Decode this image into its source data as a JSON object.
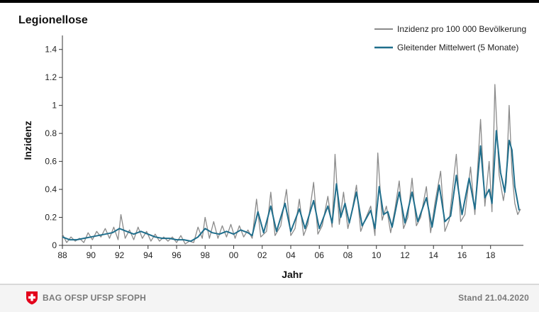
{
  "chart_data": {
    "type": "line",
    "title": "Legionellose",
    "xlabel": "Jahr",
    "ylabel": "Inzidenz",
    "ylim": [
      0,
      1.5
    ],
    "yticks": [
      0,
      0.2,
      0.4,
      0.6,
      0.8,
      1,
      1.2,
      1.4
    ],
    "ytick_labels": [
      "0",
      "0.2",
      "0.4",
      "0.6",
      "0.8",
      "1",
      "1.2",
      "1.4"
    ],
    "xlim": [
      1988,
      2020.3
    ],
    "xticks": [
      1988,
      1990,
      1992,
      1994,
      1996,
      1998,
      2000,
      2002,
      2004,
      2006,
      2008,
      2010,
      2012,
      2014,
      2016,
      2018
    ],
    "xtick_labels": [
      "88",
      "90",
      "92",
      "94",
      "96",
      "98",
      "00",
      "02",
      "04",
      "06",
      "08",
      "10",
      "12",
      "14",
      "16",
      "18"
    ],
    "legend_position": "top-right",
    "series": [
      {
        "name": "Inzidenz pro 100 000 Bevölkerung",
        "color": "#8a8a8a",
        "points": [
          [
            1988.0,
            0.08
          ],
          [
            1988.3,
            0.02
          ],
          [
            1988.6,
            0.06
          ],
          [
            1988.9,
            0.03
          ],
          [
            1989.2,
            0.05
          ],
          [
            1989.5,
            0.02
          ],
          [
            1989.8,
            0.09
          ],
          [
            1990.1,
            0.04
          ],
          [
            1990.4,
            0.1
          ],
          [
            1990.7,
            0.06
          ],
          [
            1991.0,
            0.12
          ],
          [
            1991.3,
            0.05
          ],
          [
            1991.6,
            0.13
          ],
          [
            1991.9,
            0.04
          ],
          [
            1992.1,
            0.22
          ],
          [
            1992.4,
            0.05
          ],
          [
            1992.7,
            0.11
          ],
          [
            1993.0,
            0.04
          ],
          [
            1993.3,
            0.13
          ],
          [
            1993.6,
            0.05
          ],
          [
            1993.9,
            0.1
          ],
          [
            1994.2,
            0.03
          ],
          [
            1994.5,
            0.08
          ],
          [
            1994.8,
            0.03
          ],
          [
            1995.1,
            0.06
          ],
          [
            1995.4,
            0.03
          ],
          [
            1995.7,
            0.06
          ],
          [
            1996.0,
            0.02
          ],
          [
            1996.3,
            0.07
          ],
          [
            1996.6,
            0.01
          ],
          [
            1996.9,
            0.03
          ],
          [
            1997.2,
            0.02
          ],
          [
            1997.5,
            0.13
          ],
          [
            1997.8,
            0.05
          ],
          [
            1998.0,
            0.2
          ],
          [
            1998.3,
            0.05
          ],
          [
            1998.6,
            0.17
          ],
          [
            1998.9,
            0.05
          ],
          [
            1999.2,
            0.14
          ],
          [
            1999.5,
            0.06
          ],
          [
            1999.8,
            0.15
          ],
          [
            2000.1,
            0.05
          ],
          [
            2000.4,
            0.14
          ],
          [
            2000.7,
            0.06
          ],
          [
            2001.0,
            0.11
          ],
          [
            2001.3,
            0.05
          ],
          [
            2001.6,
            0.33
          ],
          [
            2001.9,
            0.06
          ],
          [
            2002.3,
            0.1
          ],
          [
            2002.6,
            0.38
          ],
          [
            2002.9,
            0.07
          ],
          [
            2003.3,
            0.14
          ],
          [
            2003.7,
            0.4
          ],
          [
            2004.0,
            0.07
          ],
          [
            2004.3,
            0.12
          ],
          [
            2004.6,
            0.33
          ],
          [
            2004.9,
            0.07
          ],
          [
            2005.2,
            0.15
          ],
          [
            2005.6,
            0.45
          ],
          [
            2005.9,
            0.08
          ],
          [
            2006.2,
            0.14
          ],
          [
            2006.6,
            0.35
          ],
          [
            2006.9,
            0.13
          ],
          [
            2007.1,
            0.65
          ],
          [
            2007.4,
            0.15
          ],
          [
            2007.7,
            0.38
          ],
          [
            2008.0,
            0.12
          ],
          [
            2008.3,
            0.25
          ],
          [
            2008.6,
            0.43
          ],
          [
            2008.9,
            0.1
          ],
          [
            2009.2,
            0.18
          ],
          [
            2009.6,
            0.28
          ],
          [
            2009.9,
            0.07
          ],
          [
            2010.1,
            0.66
          ],
          [
            2010.4,
            0.18
          ],
          [
            2010.7,
            0.28
          ],
          [
            2011.0,
            0.09
          ],
          [
            2011.3,
            0.26
          ],
          [
            2011.6,
            0.46
          ],
          [
            2011.9,
            0.12
          ],
          [
            2012.2,
            0.2
          ],
          [
            2012.5,
            0.48
          ],
          [
            2012.8,
            0.14
          ],
          [
            2013.1,
            0.2
          ],
          [
            2013.5,
            0.42
          ],
          [
            2013.8,
            0.09
          ],
          [
            2014.1,
            0.3
          ],
          [
            2014.5,
            0.53
          ],
          [
            2014.8,
            0.1
          ],
          [
            2015.1,
            0.18
          ],
          [
            2015.6,
            0.65
          ],
          [
            2015.9,
            0.17
          ],
          [
            2016.2,
            0.22
          ],
          [
            2016.6,
            0.56
          ],
          [
            2016.9,
            0.22
          ],
          [
            2017.3,
            0.9
          ],
          [
            2017.6,
            0.28
          ],
          [
            2017.9,
            0.6
          ],
          [
            2018.1,
            0.24
          ],
          [
            2018.3,
            1.15
          ],
          [
            2018.6,
            0.5
          ],
          [
            2018.9,
            0.32
          ],
          [
            2019.1,
            0.45
          ],
          [
            2019.3,
            1.0
          ],
          [
            2019.5,
            0.52
          ],
          [
            2019.7,
            0.3
          ],
          [
            2019.9,
            0.22
          ],
          [
            2020.1,
            0.26
          ]
        ]
      },
      {
        "name": "Gleitender Mittelwert (5 Monate)",
        "color": "#1f6e8c",
        "points": [
          [
            1988.0,
            0.06
          ],
          [
            1988.5,
            0.04
          ],
          [
            1989.0,
            0.04
          ],
          [
            1989.5,
            0.05
          ],
          [
            1990.0,
            0.06
          ],
          [
            1990.5,
            0.07
          ],
          [
            1991.0,
            0.08
          ],
          [
            1991.5,
            0.09
          ],
          [
            1992.0,
            0.12
          ],
          [
            1992.5,
            0.1
          ],
          [
            1993.0,
            0.08
          ],
          [
            1993.5,
            0.1
          ],
          [
            1994.0,
            0.08
          ],
          [
            1994.5,
            0.06
          ],
          [
            1995.0,
            0.05
          ],
          [
            1995.5,
            0.05
          ],
          [
            1996.0,
            0.04
          ],
          [
            1996.5,
            0.04
          ],
          [
            1997.0,
            0.03
          ],
          [
            1997.5,
            0.06
          ],
          [
            1998.0,
            0.12
          ],
          [
            1998.5,
            0.09
          ],
          [
            1999.0,
            0.08
          ],
          [
            1999.5,
            0.1
          ],
          [
            2000.0,
            0.08
          ],
          [
            2000.5,
            0.11
          ],
          [
            2001.0,
            0.09
          ],
          [
            2001.3,
            0.07
          ],
          [
            2001.7,
            0.24
          ],
          [
            2002.1,
            0.09
          ],
          [
            2002.6,
            0.28
          ],
          [
            2003.0,
            0.1
          ],
          [
            2003.6,
            0.3
          ],
          [
            2004.0,
            0.1
          ],
          [
            2004.6,
            0.26
          ],
          [
            2005.0,
            0.12
          ],
          [
            2005.6,
            0.32
          ],
          [
            2006.0,
            0.12
          ],
          [
            2006.6,
            0.28
          ],
          [
            2006.9,
            0.16
          ],
          [
            2007.2,
            0.44
          ],
          [
            2007.5,
            0.2
          ],
          [
            2007.8,
            0.3
          ],
          [
            2008.1,
            0.16
          ],
          [
            2008.6,
            0.38
          ],
          [
            2009.0,
            0.14
          ],
          [
            2009.6,
            0.25
          ],
          [
            2009.9,
            0.12
          ],
          [
            2010.2,
            0.42
          ],
          [
            2010.5,
            0.22
          ],
          [
            2010.8,
            0.24
          ],
          [
            2011.1,
            0.13
          ],
          [
            2011.6,
            0.38
          ],
          [
            2012.0,
            0.16
          ],
          [
            2012.5,
            0.38
          ],
          [
            2012.9,
            0.17
          ],
          [
            2013.5,
            0.34
          ],
          [
            2013.9,
            0.13
          ],
          [
            2014.4,
            0.43
          ],
          [
            2014.8,
            0.17
          ],
          [
            2015.2,
            0.21
          ],
          [
            2015.6,
            0.5
          ],
          [
            2016.0,
            0.22
          ],
          [
            2016.5,
            0.48
          ],
          [
            2016.9,
            0.26
          ],
          [
            2017.3,
            0.71
          ],
          [
            2017.6,
            0.34
          ],
          [
            2017.9,
            0.4
          ],
          [
            2018.1,
            0.3
          ],
          [
            2018.4,
            0.82
          ],
          [
            2018.7,
            0.52
          ],
          [
            2019.0,
            0.38
          ],
          [
            2019.3,
            0.75
          ],
          [
            2019.5,
            0.68
          ],
          [
            2019.7,
            0.42
          ],
          [
            2020.0,
            0.25
          ]
        ]
      }
    ]
  },
  "footer": {
    "logo_text": "BAG OFSP UFSP SFOPH",
    "stand": "Stand 21.04.2020"
  }
}
